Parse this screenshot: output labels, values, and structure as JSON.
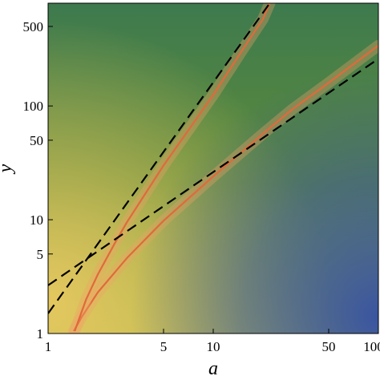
{
  "chart_data": {
    "type": "heatmap",
    "xlabel": "a",
    "ylabel": "y",
    "x_scale": "log",
    "y_scale": "log",
    "xlim": [
      1,
      100
    ],
    "ylim": [
      1,
      800
    ],
    "x_ticks": [
      {
        "value": 1,
        "label": "1"
      },
      {
        "value": 5,
        "label": "5"
      },
      {
        "value": 10,
        "label": "10"
      },
      {
        "value": 50,
        "label": "50"
      },
      {
        "value": 100,
        "label": "100"
      }
    ],
    "y_ticks": [
      {
        "value": 1,
        "label": "1"
      },
      {
        "value": 5,
        "label": "5"
      },
      {
        "value": 10,
        "label": "10"
      },
      {
        "value": 50,
        "label": "50"
      },
      {
        "value": 100,
        "label": "100"
      },
      {
        "value": 500,
        "label": "500"
      }
    ],
    "colormap": {
      "low": "#3a55a0",
      "mid_low": "#3e7a4e",
      "mid": "#5e8c3a",
      "mid_high": "#a8b84a",
      "high": "#e8c860",
      "peak": "#f2a068"
    },
    "series": [
      {
        "style": "solid",
        "color": "#e06a3c",
        "points": [
          [
            1.43,
            1.05
          ],
          [
            1.6,
            1.4
          ],
          [
            2,
            2.3
          ],
          [
            3,
            4.6
          ],
          [
            5,
            9.8
          ],
          [
            10,
            24
          ],
          [
            20,
            57
          ],
          [
            30,
            93
          ],
          [
            50,
            160
          ],
          [
            100,
            340
          ]
        ]
      },
      {
        "style": "solid",
        "color": "#e06a3c",
        "points": [
          [
            1.45,
            1.05
          ],
          [
            1.7,
            2.0
          ],
          [
            2,
            3.3
          ],
          [
            2.5,
            6.0
          ],
          [
            3,
            9.5
          ],
          [
            5,
            30
          ],
          [
            10,
            125
          ],
          [
            15,
            310
          ],
          [
            20,
            580
          ],
          [
            22,
            800
          ]
        ]
      },
      {
        "style": "dashed",
        "color": "#000000",
        "points": [
          [
            1,
            1.5
          ],
          [
            22,
            800
          ]
        ]
      },
      {
        "style": "dashed",
        "color": "#000000",
        "points": [
          [
            1,
            2.65
          ],
          [
            100,
            260
          ]
        ]
      }
    ]
  }
}
